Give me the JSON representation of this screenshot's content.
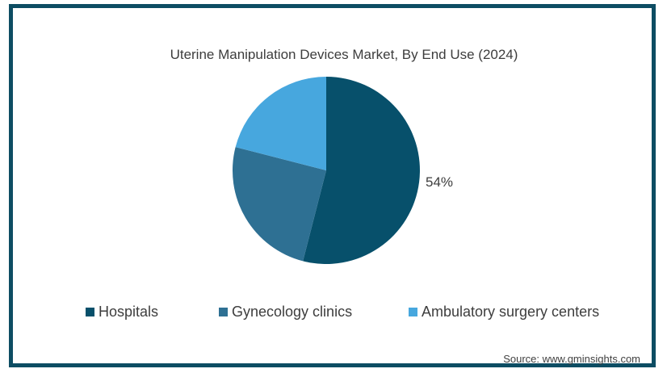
{
  "chart_data": {
    "type": "pie",
    "title": "Uterine Manipulation Devices Market, By End Use (2024)",
    "categories": [
      "Hospitals",
      "Gynecology clinics",
      "Ambulatory surgery centers"
    ],
    "values": [
      54,
      25,
      21
    ],
    "unit": "%",
    "colors": [
      "#07506b",
      "#2e7093",
      "#47a7de"
    ],
    "slice_labels": [
      "54%",
      "",
      ""
    ],
    "start_angle_deg": 0,
    "direction": "clockwise",
    "legend_position": "bottom"
  },
  "source": {
    "text": "Source: www.gminsights.com"
  },
  "style": {
    "border_color": "#0d4d63",
    "text_color": "#3d3d3d",
    "source_text_color": "#404040",
    "background": "#ffffff"
  }
}
